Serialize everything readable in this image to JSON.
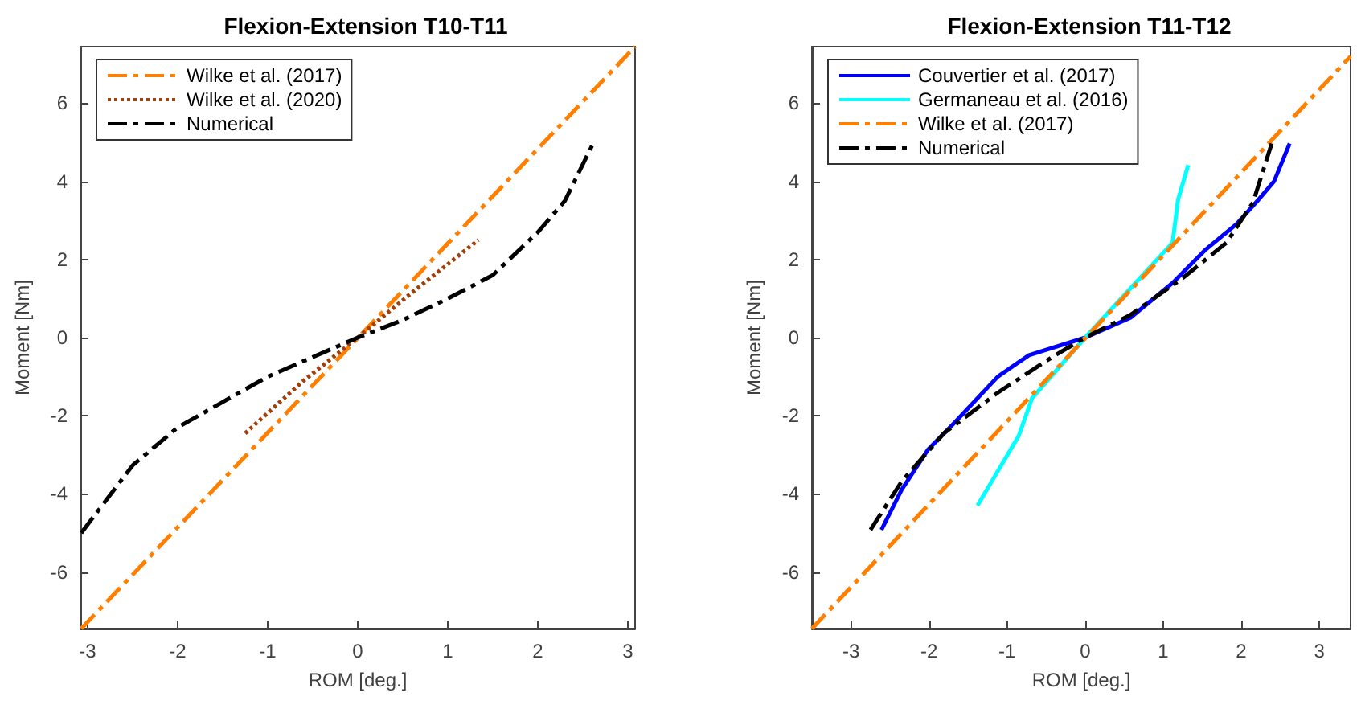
{
  "chart_data": [
    {
      "type": "line",
      "title": "Flexion-Extension T10-T11",
      "xlabel": "ROM [deg.]",
      "ylabel": "Moment [Nm]",
      "xlim": [
        -3.08,
        3.08
      ],
      "xticks": [
        -3,
        -2,
        -1,
        0,
        1,
        2,
        3
      ],
      "ylim": [
        -7.45,
        7.45
      ],
      "yticks": [
        -6,
        -4,
        -2,
        0,
        2,
        4,
        6
      ],
      "grid": false,
      "legend": "top left",
      "marker": "none",
      "series": [
        {
          "name": "Wilke et al. (2017)",
          "color": "#ff8000",
          "line_style": "dashdot",
          "x": [
            -3.07,
            3.08
          ],
          "values": [
            -7.45,
            7.45
          ]
        },
        {
          "name": "Wilke et al. (2020)",
          "color": "#a0400a",
          "line_style": "dotted",
          "x": [
            -1.25,
            -0.6,
            0,
            0.6,
            1.34
          ],
          "values": [
            -2.45,
            -1.1,
            0,
            1.15,
            2.5
          ]
        },
        {
          "name": "Numerical",
          "color": "#000000",
          "line_style": "dashdot",
          "x": [
            -3.07,
            -2.5,
            -2,
            -1.5,
            -1,
            -0.5,
            0,
            0.5,
            1,
            1.5,
            2,
            2.3,
            2.62
          ],
          "values": [
            -5.0,
            -3.27,
            -2.3,
            -1.65,
            -1.0,
            -0.5,
            0,
            0.45,
            1.0,
            1.6,
            2.7,
            3.5,
            5.0
          ]
        }
      ]
    },
    {
      "type": "line",
      "title": "Flexion-Extension T11-T12",
      "xlabel": "ROM [deg.]",
      "ylabel": "Moment [Nm]",
      "xlim": [
        -3.5,
        3.4
      ],
      "xticks": [
        -3,
        -2,
        -1,
        0,
        1,
        2,
        3
      ],
      "ylim": [
        -7.45,
        7.45
      ],
      "yticks": [
        -6,
        -4,
        -2,
        0,
        2,
        4,
        6
      ],
      "grid": false,
      "legend": "top left",
      "marker": "none",
      "series": [
        {
          "name": "Couvertier et al. (2017)",
          "color": "#0000ff",
          "line_style": "solid",
          "x": [
            -2.61,
            -2.35,
            -2.01,
            -1.67,
            -1.12,
            -0.72,
            0,
            0.58,
            1.12,
            1.53,
            1.94,
            2.22,
            2.42,
            2.62
          ],
          "values": [
            -4.92,
            -3.89,
            -2.86,
            -2.17,
            -1.0,
            -0.45,
            0,
            0.51,
            1.4,
            2.23,
            2.91,
            3.53,
            4.0,
            4.97
          ]
        },
        {
          "name": "Germaneau et al. (2016)",
          "color": "#00ffff",
          "line_style": "solid",
          "x": [
            -1.38,
            -0.85,
            -0.68,
            0,
            1.12,
            1.19,
            1.32
          ],
          "values": [
            -4.3,
            -2.51,
            -1.55,
            0,
            2.43,
            3.53,
            4.42
          ]
        },
        {
          "name": "Wilke et al. (2017)",
          "color": "#ff8000",
          "line_style": "dashdot",
          "x": [
            -3.5,
            3.4
          ],
          "values": [
            -7.45,
            7.2
          ]
        },
        {
          "name": "Numerical",
          "color": "#000000",
          "line_style": "dashdot",
          "x": [
            -2.75,
            -2.35,
            -1.81,
            -1.12,
            -0.44,
            0,
            0.58,
            1.26,
            1.81,
            2.15,
            2.39
          ],
          "values": [
            -4.92,
            -3.68,
            -2.45,
            -1.41,
            -0.52,
            0,
            0.58,
            1.54,
            2.43,
            3.46,
            4.97
          ]
        }
      ]
    }
  ]
}
